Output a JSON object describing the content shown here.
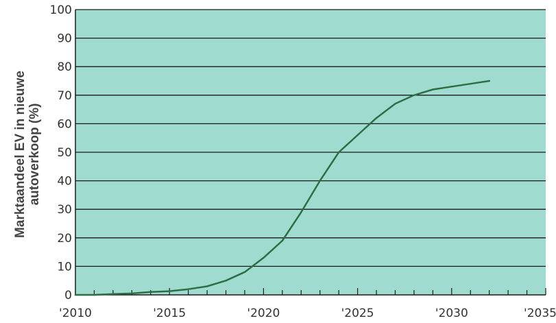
{
  "chart_data": {
    "type": "line",
    "title": "",
    "xlabel": "",
    "ylabel_lines": [
      "Marktaandeel EV in nieuwe",
      "autoverkoop (%)"
    ],
    "ylabel": "Marktaandeel EV in nieuwe autoverkoop (%)",
    "xlim": [
      2010,
      2035
    ],
    "ylim": [
      0,
      100
    ],
    "y_ticks": [
      0,
      10,
      20,
      30,
      40,
      50,
      60,
      70,
      80,
      90,
      100
    ],
    "y_tick_labels": [
      "0",
      "10",
      "20",
      "30",
      "40",
      "50",
      "60",
      "70",
      "80",
      "90",
      "100"
    ],
    "x_ticks": [
      2010,
      2015,
      2020,
      2025,
      2030,
      2035
    ],
    "x_tick_labels": [
      "'2010",
      "'2015",
      "'2020",
      "'2025",
      "'2030",
      "'2035"
    ],
    "grid": "horizontal",
    "legend": "none",
    "colors": {
      "plot_background": "#9fdccf",
      "line": "#2e6e44",
      "grid": "#1a1a1a",
      "axis": "#1a1a1a"
    },
    "series": [
      {
        "x": [
          2010,
          2011,
          2012,
          2013,
          2014,
          2015,
          2016,
          2017,
          2018,
          2019,
          2020,
          2021,
          2022,
          2023,
          2024,
          2025,
          2026,
          2027,
          2028,
          2029,
          2030,
          2031,
          2032
        ],
        "values": [
          0,
          0,
          0.3,
          0.5,
          1,
          1.3,
          2,
          3,
          5,
          8,
          13,
          19,
          29,
          40,
          50,
          56,
          62,
          67,
          70,
          72,
          73,
          74,
          75
        ]
      }
    ]
  }
}
